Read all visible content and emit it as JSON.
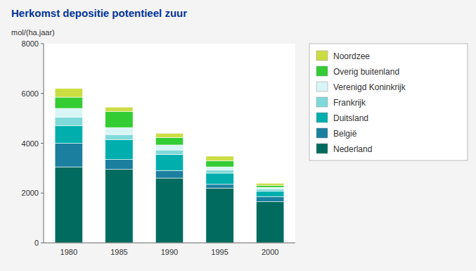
{
  "chart_data": {
    "type": "bar",
    "stacked": true,
    "title": "Herkomst depositie potentieel zuur",
    "ylabel": "mol/(ha.jaar)",
    "categories": [
      "1980",
      "1985",
      "1990",
      "1995",
      "2000"
    ],
    "series": [
      {
        "name": "Nederland",
        "color": "#006B5E",
        "values": [
          3050,
          2950,
          2600,
          2200,
          1650
        ]
      },
      {
        "name": "België",
        "color": "#1B7FA0",
        "values": [
          950,
          400,
          300,
          150,
          200
        ]
      },
      {
        "name": "Duitsland",
        "color": "#00AEAE",
        "values": [
          700,
          800,
          650,
          450,
          220
        ]
      },
      {
        "name": "Frankrijk",
        "color": "#7FD9D9",
        "values": [
          350,
          200,
          180,
          130,
          90
        ]
      },
      {
        "name": "Verenigd Koninkrijk",
        "color": "#D8F4F4",
        "values": [
          350,
          280,
          200,
          120,
          70
        ]
      },
      {
        "name": "Overig buitenland",
        "color": "#33CC33",
        "values": [
          450,
          650,
          300,
          250,
          80
        ]
      },
      {
        "name": "Noordzee",
        "color": "#CCDD44",
        "values": [
          350,
          170,
          170,
          180,
          80
        ]
      }
    ],
    "ylim": [
      0,
      8000
    ],
    "yticks": [
      0,
      2000,
      4000,
      6000,
      8000
    ],
    "grid": false,
    "legend": "right"
  }
}
